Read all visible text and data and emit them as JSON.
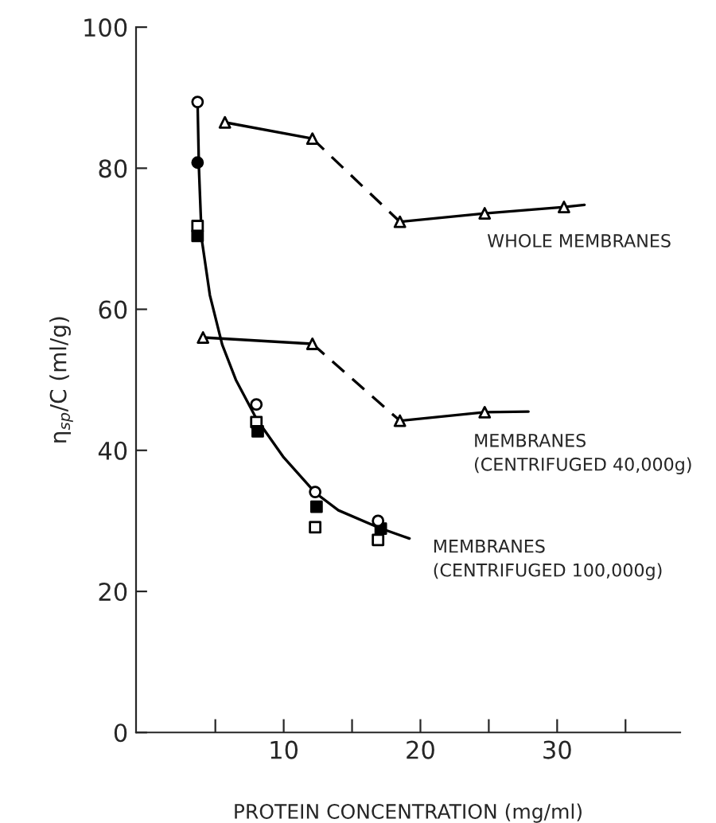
{
  "chart_data": {
    "type": "scatter",
    "xlabel": "PROTEIN CONCENTRATION (mg/ml)",
    "ylabel": "η$_{sp}$/C (ml/g)",
    "xlim": [
      -0.8,
      39
    ],
    "ylim": [
      0,
      100
    ],
    "xticks": [
      {
        "value": 5,
        "label": null
      },
      10,
      {
        "value": 15,
        "label": null
      },
      20,
      {
        "value": 25,
        "label": null
      },
      30,
      {
        "value": 35,
        "label": null
      }
    ],
    "yticks": [
      0,
      20,
      40,
      60,
      80,
      100
    ],
    "grid": false,
    "legend": false,
    "series": [
      {
        "marker": "triangle",
        "color": "#ffffff",
        "x": [
          5.7,
          12.1,
          18.5,
          24.7,
          30.5
        ],
        "values": [
          86.5,
          84.2,
          72.4,
          73.6,
          74.5
        ]
      },
      {
        "type": "line",
        "marker": "none",
        "line_style": "solid",
        "color": "#000000",
        "x": [
          5.7,
          12.1
        ],
        "values": [
          86.5,
          84.2
        ]
      },
      {
        "type": "line",
        "marker": "none",
        "line_style": "dashed",
        "color": "#000000",
        "x": [
          12.1,
          18.5
        ],
        "values": [
          84.2,
          72.4
        ]
      },
      {
        "type": "line",
        "marker": "none",
        "line_style": "solid",
        "color": "#000000",
        "x": [
          18.5,
          24.7,
          30.5,
          32
        ],
        "values": [
          72.4,
          73.6,
          74.5,
          74.8
        ]
      },
      {
        "marker": "triangle",
        "color": "#ffffff",
        "x": [
          4.1,
          12.1,
          18.5,
          24.7
        ],
        "values": [
          56.0,
          55.1,
          44.2,
          45.4
        ]
      },
      {
        "type": "line",
        "marker": "none",
        "line_style": "solid",
        "color": "#000000",
        "x": [
          4.1,
          12.1
        ],
        "values": [
          56.0,
          55.1
        ]
      },
      {
        "type": "line",
        "marker": "none",
        "line_style": "dashed",
        "color": "#000000",
        "x": [
          12.1,
          18.5
        ],
        "values": [
          55.1,
          44.2
        ]
      },
      {
        "type": "line",
        "marker": "none",
        "line_style": "solid",
        "color": "#000000",
        "x": [
          18.5,
          24.7,
          27.9
        ],
        "values": [
          44.2,
          45.4,
          45.5
        ]
      },
      {
        "type": "line",
        "marker": "none",
        "line_style": "solid",
        "color": "#000000",
        "x": [
          3.7,
          3.8,
          4.0,
          4.6,
          5.5,
          6.5,
          8.0,
          10.0,
          12.3,
          14.0,
          17.0,
          19.2
        ],
        "values": [
          89.4,
          80,
          70,
          62,
          55,
          50,
          44.5,
          39,
          34,
          31.5,
          29,
          27.5
        ]
      },
      {
        "marker": "circle",
        "color": "#000000",
        "x": [
          3.7
        ],
        "values": [
          80.8
        ]
      },
      {
        "marker": "square",
        "color": "#ffffff",
        "x": [
          3.7,
          8.0,
          12.3,
          16.9
        ],
        "values": [
          71.8,
          44.0,
          29.1,
          27.3
        ]
      },
      {
        "marker": "square",
        "color": "#000000",
        "x": [
          3.7,
          8.1,
          12.4,
          17.1
        ],
        "values": [
          70.4,
          42.7,
          32.0,
          28.9
        ]
      },
      {
        "marker": "circle",
        "color": "#ffffff",
        "x": [
          3.7,
          8.0,
          12.3,
          16.9
        ],
        "values": [
          89.4,
          46.5,
          34.1,
          30.0
        ]
      }
    ],
    "annotations": [
      "WHOLE MEMBRANES",
      "MEMBRANES\n(CENTRIFUGED 40,000g)",
      "MEMBRANES\n(CENTRIFUGED 100,000g)"
    ]
  }
}
